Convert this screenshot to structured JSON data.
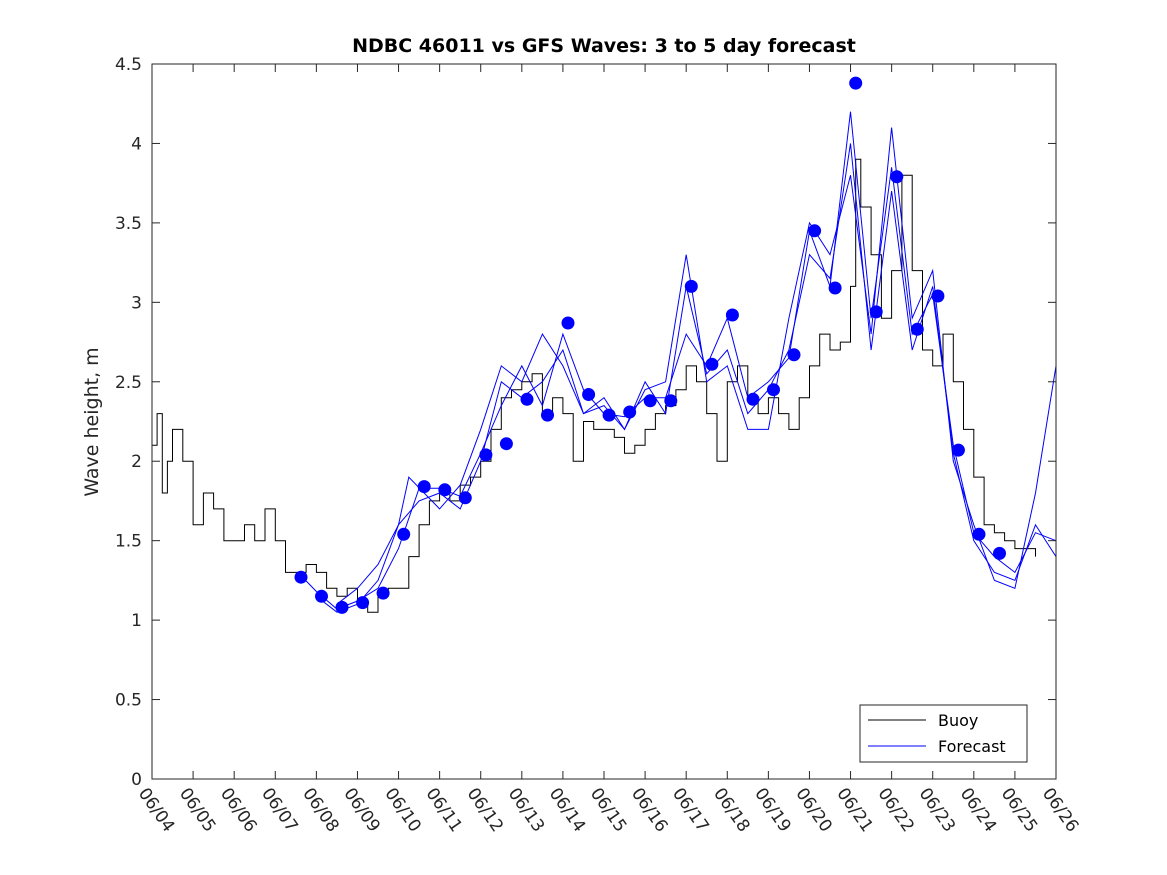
{
  "chart_data": {
    "type": "line",
    "title": "NDBC 46011 vs GFS Waves: 3 to 5 day forecast",
    "xlabel": "",
    "ylabel": "Wave height, m",
    "x_ticks": [
      "06/04",
      "06/05",
      "06/06",
      "06/07",
      "06/08",
      "06/09",
      "06/10",
      "06/11",
      "06/12",
      "06/13",
      "06/14",
      "06/15",
      "06/16",
      "06/17",
      "06/18",
      "06/19",
      "06/20",
      "06/21",
      "06/22",
      "06/23",
      "06/24",
      "06/25",
      "06/26"
    ],
    "y_ticks": [
      "0",
      "0.5",
      "1",
      "1.5",
      "2",
      "2.5",
      "3",
      "3.5",
      "4",
      "4.5"
    ],
    "xlim": [
      "06/04",
      "06/26"
    ],
    "ylim": [
      0,
      4.5
    ],
    "grid": false,
    "legend_position": "bottom-right",
    "colors": {
      "buoy": "#000000",
      "forecast": "#0000ff"
    },
    "series": [
      {
        "name": "Buoy",
        "color": "#000000",
        "points": [
          [
            "06/04 00:00",
            2.1
          ],
          [
            "06/04 03:00",
            2.3
          ],
          [
            "06/04 06:00",
            1.8
          ],
          [
            "06/04 09:00",
            2.0
          ],
          [
            "06/04 12:00",
            2.2
          ],
          [
            "06/04 18:00",
            2.0
          ],
          [
            "06/05 00:00",
            1.6
          ],
          [
            "06/05 06:00",
            1.8
          ],
          [
            "06/05 12:00",
            1.7
          ],
          [
            "06/05 18:00",
            1.5
          ],
          [
            "06/06 00:00",
            1.5
          ],
          [
            "06/06 06:00",
            1.6
          ],
          [
            "06/06 12:00",
            1.5
          ],
          [
            "06/06 18:00",
            1.7
          ],
          [
            "06/07 00:00",
            1.5
          ],
          [
            "06/07 06:00",
            1.3
          ],
          [
            "06/07 12:00",
            1.3
          ],
          [
            "06/07 18:00",
            1.35
          ],
          [
            "06/08 00:00",
            1.3
          ],
          [
            "06/08 06:00",
            1.2
          ],
          [
            "06/08 12:00",
            1.15
          ],
          [
            "06/08 18:00",
            1.2
          ],
          [
            "06/09 00:00",
            1.1
          ],
          [
            "06/09 06:00",
            1.05
          ],
          [
            "06/09 12:00",
            1.15
          ],
          [
            "06/09 18:00",
            1.2
          ],
          [
            "06/10 00:00",
            1.2
          ],
          [
            "06/10 06:00",
            1.4
          ],
          [
            "06/10 12:00",
            1.6
          ],
          [
            "06/10 18:00",
            1.75
          ],
          [
            "06/11 00:00",
            1.8
          ],
          [
            "06/11 06:00",
            1.75
          ],
          [
            "06/11 12:00",
            1.85
          ],
          [
            "06/11 18:00",
            1.9
          ],
          [
            "06/12 00:00",
            2.0
          ],
          [
            "06/12 06:00",
            2.2
          ],
          [
            "06/12 12:00",
            2.4
          ],
          [
            "06/12 18:00",
            2.45
          ],
          [
            "06/13 00:00",
            2.5
          ],
          [
            "06/13 06:00",
            2.55
          ],
          [
            "06/13 12:00",
            2.3
          ],
          [
            "06/13 18:00",
            2.4
          ],
          [
            "06/14 00:00",
            2.3
          ],
          [
            "06/14 06:00",
            2.0
          ],
          [
            "06/14 12:00",
            2.25
          ],
          [
            "06/14 18:00",
            2.2
          ],
          [
            "06/15 00:00",
            2.2
          ],
          [
            "06/15 06:00",
            2.15
          ],
          [
            "06/15 12:00",
            2.05
          ],
          [
            "06/15 18:00",
            2.1
          ],
          [
            "06/16 00:00",
            2.2
          ],
          [
            "06/16 06:00",
            2.3
          ],
          [
            "06/16 12:00",
            2.35
          ],
          [
            "06/16 18:00",
            2.45
          ],
          [
            "06/17 00:00",
            2.6
          ],
          [
            "06/17 06:00",
            2.5
          ],
          [
            "06/17 12:00",
            2.3
          ],
          [
            "06/17 18:00",
            2.0
          ],
          [
            "06/18 00:00",
            2.5
          ],
          [
            "06/18 06:00",
            2.6
          ],
          [
            "06/18 12:00",
            2.4
          ],
          [
            "06/18 18:00",
            2.3
          ],
          [
            "06/19 00:00",
            2.4
          ],
          [
            "06/19 06:00",
            2.3
          ],
          [
            "06/19 12:00",
            2.2
          ],
          [
            "06/19 18:00",
            2.4
          ],
          [
            "06/20 00:00",
            2.6
          ],
          [
            "06/20 06:00",
            2.8
          ],
          [
            "06/20 12:00",
            2.7
          ],
          [
            "06/20 18:00",
            2.75
          ],
          [
            "06/21 00:00",
            3.1
          ],
          [
            "06/21 03:00",
            3.9
          ],
          [
            "06/21 06:00",
            3.6
          ],
          [
            "06/21 12:00",
            3.3
          ],
          [
            "06/21 18:00",
            2.9
          ],
          [
            "06/22 00:00",
            3.2
          ],
          [
            "06/22 06:00",
            3.8
          ],
          [
            "06/22 12:00",
            3.2
          ],
          [
            "06/22 18:00",
            2.7
          ],
          [
            "06/23 00:00",
            2.6
          ],
          [
            "06/23 06:00",
            2.8
          ],
          [
            "06/23 12:00",
            2.5
          ],
          [
            "06/23 18:00",
            2.2
          ],
          [
            "06/24 00:00",
            1.9
          ],
          [
            "06/24 06:00",
            1.6
          ],
          [
            "06/24 12:00",
            1.55
          ],
          [
            "06/24 18:00",
            1.5
          ],
          [
            "06/25 00:00",
            1.45
          ],
          [
            "06/25 06:00",
            1.45
          ],
          [
            "06/25 12:00",
            1.4
          ]
        ]
      },
      {
        "name": "Forecast",
        "color": "#0000ff",
        "runs": [
          [
            [
              "06/07 15:00",
              1.28
            ],
            [
              "06/08 00:00",
              1.18
            ],
            [
              "06/08 12:00",
              1.07
            ],
            [
              "06/09 00:00",
              1.12
            ],
            [
              "06/09 12:00",
              1.2
            ],
            [
              "06/10 00:00",
              1.45
            ],
            [
              "06/10 12:00",
              1.83
            ],
            [
              "06/11 00:00",
              1.83
            ],
            [
              "06/11 12:00",
              1.78
            ],
            [
              "06/12 00:00",
              2.05
            ],
            [
              "06/12 12:00",
              2.35
            ],
            [
              "06/13 00:00",
              2.6
            ],
            [
              "06/13 12:00",
              2.35
            ],
            [
              "06/14 00:00",
              2.8
            ],
            [
              "06/14 12:00",
              2.45
            ],
            [
              "06/15 00:00",
              2.3
            ],
            [
              "06/15 12:00",
              2.28
            ],
            [
              "06/16 00:00",
              2.4
            ],
            [
              "06/16 12:00",
              2.4
            ],
            [
              "06/17 00:00",
              2.8
            ],
            [
              "06/17 12:00",
              2.6
            ],
            [
              "06/18 00:00",
              2.9
            ],
            [
              "06/18 12:00",
              2.4
            ],
            [
              "06/19 00:00",
              2.5
            ],
            [
              "06/19 12:00",
              2.65
            ],
            [
              "06/20 00:00",
              3.45
            ],
            [
              "06/20 12:00",
              3.1
            ],
            [
              "06/21 00:00",
              4.2
            ],
            [
              "06/21 12:00",
              2.9
            ],
            [
              "06/22 00:00",
              3.85
            ],
            [
              "06/22 12:00",
              2.8
            ],
            [
              "06/23 00:00",
              3.05
            ],
            [
              "06/23 12:00",
              2.1
            ],
            [
              "06/24 00:00",
              1.55
            ],
            [
              "06/24 12:00",
              1.4
            ],
            [
              "06/25 00:00",
              1.3
            ],
            [
              "06/25 12:00",
              1.55
            ],
            [
              "06/26 00:00",
              1.5
            ]
          ],
          [
            [
              "06/08 00:00",
              1.15
            ],
            [
              "06/08 12:00",
              1.05
            ],
            [
              "06/09 00:00",
              1.1
            ],
            [
              "06/09 12:00",
              1.25
            ],
            [
              "06/10 00:00",
              1.6
            ],
            [
              "06/10 12:00",
              1.75
            ],
            [
              "06/11 00:00",
              1.8
            ],
            [
              "06/11 12:00",
              1.7
            ],
            [
              "06/12 00:00",
              2.0
            ],
            [
              "06/12 12:00",
              2.5
            ],
            [
              "06/13 00:00",
              2.4
            ],
            [
              "06/13 12:00",
              2.5
            ],
            [
              "06/14 00:00",
              2.7
            ],
            [
              "06/14 12:00",
              2.3
            ],
            [
              "06/15 00:00",
              2.4
            ],
            [
              "06/15 12:00",
              2.2
            ],
            [
              "06/16 00:00",
              2.5
            ],
            [
              "06/16 12:00",
              2.3
            ],
            [
              "06/17 00:00",
              3.1
            ],
            [
              "06/17 12:00",
              2.55
            ],
            [
              "06/18 00:00",
              2.7
            ],
            [
              "06/18 12:00",
              2.3
            ],
            [
              "06/19 00:00",
              2.45
            ],
            [
              "06/19 12:00",
              2.7
            ],
            [
              "06/20 00:00",
              3.3
            ],
            [
              "06/20 12:00",
              3.15
            ],
            [
              "06/21 00:00",
              4.0
            ],
            [
              "06/21 12:00",
              2.7
            ],
            [
              "06/22 00:00",
              3.7
            ],
            [
              "06/22 12:00",
              2.7
            ],
            [
              "06/23 00:00",
              3.1
            ],
            [
              "06/23 12:00",
              2.05
            ],
            [
              "06/24 00:00",
              1.5
            ],
            [
              "06/24 12:00",
              1.3
            ],
            [
              "06/25 00:00",
              1.25
            ],
            [
              "06/25 12:00",
              1.6
            ],
            [
              "06/26 00:00",
              1.4
            ]
          ],
          [
            [
              "06/08 12:00",
              1.1
            ],
            [
              "06/09 00:00",
              1.2
            ],
            [
              "06/09 12:00",
              1.35
            ],
            [
              "06/10 00:00",
              1.6
            ],
            [
              "06/10 06:00",
              1.9
            ],
            [
              "06/11 00:00",
              1.7
            ],
            [
              "06/11 12:00",
              1.85
            ],
            [
              "06/12 00:00",
              2.2
            ],
            [
              "06/12 12:00",
              2.6
            ],
            [
              "06/13 00:00",
              2.5
            ],
            [
              "06/13 12:00",
              2.8
            ],
            [
              "06/14 00:00",
              2.6
            ],
            [
              "06/14 12:00",
              2.3
            ],
            [
              "06/15 00:00",
              2.35
            ],
            [
              "06/15 12:00",
              2.2
            ],
            [
              "06/16 00:00",
              2.45
            ],
            [
              "06/16 12:00",
              2.5
            ],
            [
              "06/17 00:00",
              3.3
            ],
            [
              "06/17 12:00",
              2.5
            ],
            [
              "06/18 00:00",
              2.6
            ],
            [
              "06/18 12:00",
              2.2
            ],
            [
              "06/19 00:00",
              2.2
            ],
            [
              "06/19 12:00",
              2.9
            ],
            [
              "06/20 00:00",
              3.5
            ],
            [
              "06/20 12:00",
              3.3
            ],
            [
              "06/21 00:00",
              3.8
            ],
            [
              "06/21 12:00",
              2.8
            ],
            [
              "06/22 00:00",
              4.1
            ],
            [
              "06/22 12:00",
              2.9
            ],
            [
              "06/23 00:00",
              3.2
            ],
            [
              "06/23 12:00",
              2.0
            ],
            [
              "06/24 00:00",
              1.6
            ],
            [
              "06/24 12:00",
              1.25
            ],
            [
              "06/25 00:00",
              1.2
            ],
            [
              "06/25 12:00",
              1.8
            ],
            [
              "06/26 00:00",
              2.6
            ]
          ]
        ],
        "analysis_markers": [
          [
            "06/07 15:00",
            1.27
          ],
          [
            "06/08 03:00",
            1.15
          ],
          [
            "06/08 15:00",
            1.08
          ],
          [
            "06/09 03:00",
            1.11
          ],
          [
            "06/09 15:00",
            1.17
          ],
          [
            "06/10 03:00",
            1.54
          ],
          [
            "06/10 15:00",
            1.84
          ],
          [
            "06/11 03:00",
            1.82
          ],
          [
            "06/11 15:00",
            1.77
          ],
          [
            "06/12 03:00",
            2.04
          ],
          [
            "06/12 15:00",
            2.11
          ],
          [
            "06/13 03:00",
            2.39
          ],
          [
            "06/13 15:00",
            2.29
          ],
          [
            "06/14 03:00",
            2.87
          ],
          [
            "06/14 15:00",
            2.42
          ],
          [
            "06/15 03:00",
            2.29
          ],
          [
            "06/15 15:00",
            2.31
          ],
          [
            "06/16 03:00",
            2.38
          ],
          [
            "06/16 15:00",
            2.38
          ],
          [
            "06/17 03:00",
            3.1
          ],
          [
            "06/17 15:00",
            2.61
          ],
          [
            "06/18 03:00",
            2.92
          ],
          [
            "06/18 15:00",
            2.39
          ],
          [
            "06/19 03:00",
            2.45
          ],
          [
            "06/19 15:00",
            2.67
          ],
          [
            "06/20 03:00",
            3.45
          ],
          [
            "06/20 15:00",
            3.09
          ],
          [
            "06/21 03:00",
            4.38
          ],
          [
            "06/21 15:00",
            2.94
          ],
          [
            "06/22 03:00",
            3.79
          ],
          [
            "06/22 15:00",
            2.83
          ],
          [
            "06/23 03:00",
            3.04
          ],
          [
            "06/23 15:00",
            2.07
          ],
          [
            "06/24 03:00",
            1.54
          ],
          [
            "06/24 15:00",
            1.42
          ]
        ]
      }
    ],
    "legend": [
      {
        "label": "Buoy",
        "color": "#000000"
      },
      {
        "label": "Forecast",
        "color": "#0000ff"
      }
    ]
  }
}
